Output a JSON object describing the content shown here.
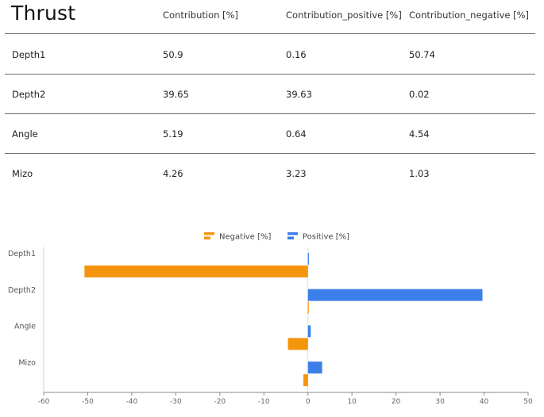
{
  "table": {
    "title": "Thrust",
    "columns": [
      "Contribution [%]",
      "Contribution_positive [%]",
      "Contribution_negative [%]"
    ],
    "rows": [
      {
        "name": "Depth1",
        "contribution": "50.9",
        "positive": "0.16",
        "negative": "50.74"
      },
      {
        "name": "Depth2",
        "contribution": "39.65",
        "positive": "39.63",
        "negative": "0.02"
      },
      {
        "name": "Angle",
        "contribution": "5.19",
        "positive": "0.64",
        "negative": "4.54"
      },
      {
        "name": "Mizo",
        "contribution": "4.26",
        "positive": "3.23",
        "negative": "1.03"
      }
    ]
  },
  "chart_data": {
    "type": "bar",
    "orientation": "horizontal",
    "categories": [
      "Depth1",
      "Depth2",
      "Angle",
      "Mizo"
    ],
    "series": [
      {
        "name": "Negative [%]",
        "color": "#f5950c",
        "values": [
          -50.74,
          -0.02,
          -4.54,
          -1.03
        ]
      },
      {
        "name": "Positive [%]",
        "color": "#3d7fea",
        "values": [
          0.16,
          39.63,
          0.64,
          3.23
        ]
      }
    ],
    "xlim": [
      -60,
      50
    ],
    "xticks": [
      -60,
      -50,
      -40,
      -30,
      -20,
      -10,
      0,
      10,
      20,
      30,
      40,
      50
    ],
    "legend_position": "top-center",
    "grid": false
  }
}
